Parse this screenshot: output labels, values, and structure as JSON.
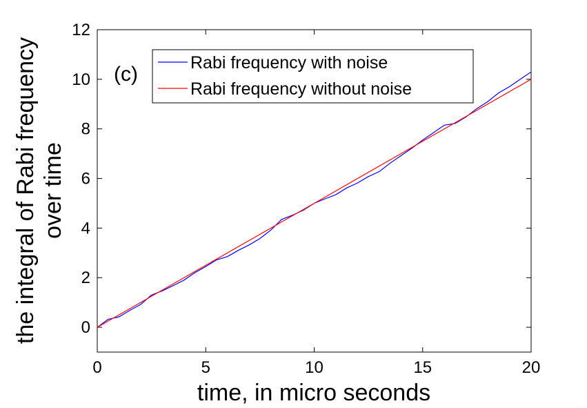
{
  "chart_data": {
    "type": "line",
    "title": "",
    "panel_label": "(c)",
    "xlabel": "time, in micro seconds",
    "ylabel_lines": [
      "the integral of Rabi frequency",
      "over time"
    ],
    "xlim": [
      0,
      20
    ],
    "ylim": [
      -1,
      12
    ],
    "xticks": [
      0,
      5,
      10,
      15,
      20
    ],
    "yticks": [
      0,
      2,
      4,
      6,
      8,
      10,
      12
    ],
    "grid": false,
    "legend_position": "top-left",
    "series": [
      {
        "name": "Rabi frequency with noise",
        "color": "#0000ff",
        "x": [
          0,
          0.5,
          1,
          1.5,
          2,
          2.5,
          3,
          3.5,
          4,
          4.5,
          5,
          5.5,
          6,
          6.5,
          7,
          7.5,
          8,
          8.5,
          9,
          9.5,
          10,
          10.5,
          11,
          11.5,
          12,
          12.5,
          13,
          13.5,
          14,
          14.5,
          15,
          15.5,
          16,
          16.5,
          17,
          17.5,
          18,
          18.5,
          19,
          19.5,
          20
        ],
        "y": [
          0,
          0.32,
          0.42,
          0.68,
          0.92,
          1.3,
          1.47,
          1.68,
          1.9,
          2.2,
          2.45,
          2.72,
          2.85,
          3.1,
          3.32,
          3.58,
          3.92,
          4.35,
          4.52,
          4.72,
          5.0,
          5.18,
          5.35,
          5.62,
          5.82,
          6.08,
          6.28,
          6.62,
          6.92,
          7.22,
          7.55,
          7.85,
          8.15,
          8.22,
          8.48,
          8.82,
          9.1,
          9.45,
          9.7,
          10.0,
          10.3
        ]
      },
      {
        "name": "Rabi frequency without noise",
        "color": "#ff0000",
        "x": [
          0,
          20
        ],
        "y": [
          0,
          10
        ]
      }
    ]
  }
}
